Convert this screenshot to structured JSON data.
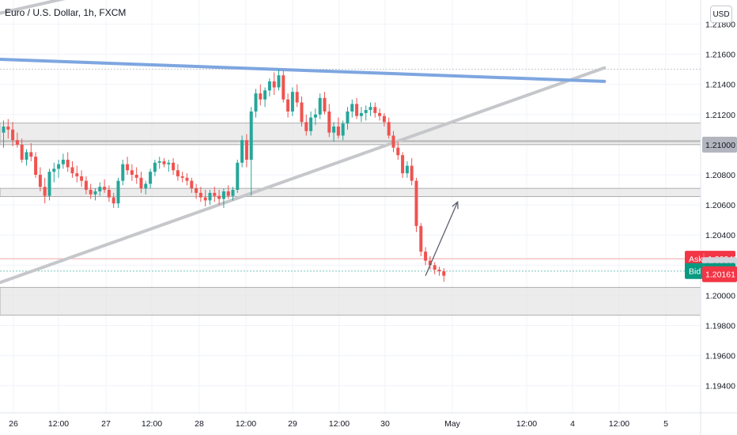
{
  "header": {
    "symbol": "Euro / U.S. Dollar, 1h, FXCM",
    "currency": "USD"
  },
  "chart_data": {
    "type": "candlestick",
    "ylim": [
      1.1922,
      1.2196
    ],
    "y_ticks": [
      "1.21800",
      "1.21600",
      "1.21400",
      "1.21200",
      "1.21000",
      "1.20800",
      "1.20600",
      "1.20400",
      "1.20200",
      "1.20000",
      "1.19800",
      "1.19600",
      "1.19400"
    ],
    "x_tick_labels": [
      "26",
      "12:00",
      "27",
      "12:00",
      "28",
      "12:00",
      "29",
      "12:00",
      "30",
      "May",
      "12:00",
      "4",
      "12:00",
      "5"
    ],
    "price_tags": [
      {
        "label": "",
        "value": "1.21000",
        "price": 1.21,
        "color": "#b2b5be",
        "text_color": "#131722"
      },
      {
        "label": "Ask",
        "value": "1.20243",
        "price": 1.20243,
        "color": "#f23645",
        "text_color": "#ffffff"
      },
      {
        "label": "",
        "value": "1.20200",
        "price": 1.202,
        "color": "#d1d4dc",
        "text_color": "#131722"
      },
      {
        "label": "Bid",
        "value": "1.20161",
        "price": 1.20161,
        "color": "#089981",
        "text_color": "#ffffff"
      },
      {
        "label": "",
        "value": "1.20161",
        "price": 1.2014,
        "color": "#f23645",
        "text_color": "#ffffff"
      }
    ],
    "zones": [
      {
        "from": 1.21143,
        "to": 1.21026
      },
      {
        "from": 1.2102,
        "to": 1.21
      },
      {
        "from": 1.2071,
        "to": 1.20655
      },
      {
        "from": 1.20053,
        "to": 1.19869
      }
    ],
    "colors": {
      "up": "#26a69a",
      "down": "#ef5350",
      "trend_blue": "#7ea6e0",
      "trend_grey": "#c6c7cb"
    },
    "candles": [
      [
        1.2108,
        1.2116,
        1.2098,
        1.2112
      ],
      [
        1.2112,
        1.2117,
        1.2104,
        1.211
      ],
      [
        1.211,
        1.2115,
        1.2099,
        1.2103
      ],
      [
        1.2103,
        1.2108,
        1.2098,
        1.21
      ],
      [
        1.21,
        1.2104,
        1.2088,
        1.209
      ],
      [
        1.209,
        1.2097,
        1.2086,
        1.2095
      ],
      [
        1.2095,
        1.2101,
        1.2089,
        1.2092
      ],
      [
        1.2092,
        1.2095,
        1.2078,
        1.208
      ],
      [
        1.208,
        1.2085,
        1.2069,
        1.2072
      ],
      [
        1.2072,
        1.2078,
        1.2061,
        1.2066
      ],
      [
        1.2066,
        1.2084,
        1.2063,
        1.2082
      ],
      [
        1.2082,
        1.2088,
        1.2075,
        1.2084
      ],
      [
        1.2084,
        1.209,
        1.2078,
        1.2087
      ],
      [
        1.2087,
        1.2094,
        1.2084,
        1.209
      ],
      [
        1.209,
        1.2095,
        1.2082,
        1.2085
      ],
      [
        1.2085,
        1.2089,
        1.2078,
        1.2081
      ],
      [
        1.2081,
        1.2086,
        1.2075,
        1.2079
      ],
      [
        1.2079,
        1.2083,
        1.2072,
        1.2076
      ],
      [
        1.2076,
        1.2079,
        1.2067,
        1.207
      ],
      [
        1.207,
        1.2074,
        1.2064,
        1.2067
      ],
      [
        1.2067,
        1.2071,
        1.2063,
        1.2069
      ],
      [
        1.2069,
        1.2075,
        1.2066,
        1.2072
      ],
      [
        1.2072,
        1.2077,
        1.2068,
        1.207
      ],
      [
        1.207,
        1.2073,
        1.2062,
        1.2065
      ],
      [
        1.2065,
        1.2068,
        1.2058,
        1.2061
      ],
      [
        1.2061,
        1.2078,
        1.2058,
        1.2076
      ],
      [
        1.2076,
        1.209,
        1.2073,
        1.2087
      ],
      [
        1.2087,
        1.2092,
        1.208,
        1.2083
      ],
      [
        1.2083,
        1.2087,
        1.2076,
        1.208
      ],
      [
        1.208,
        1.2085,
        1.2074,
        1.2078
      ],
      [
        1.2078,
        1.2082,
        1.2068,
        1.2071
      ],
      [
        1.2071,
        1.2076,
        1.2067,
        1.2074
      ],
      [
        1.2074,
        1.2084,
        1.2071,
        1.2082
      ],
      [
        1.2082,
        1.209,
        1.2079,
        1.2088
      ],
      [
        1.2088,
        1.2092,
        1.2084,
        1.2089
      ],
      [
        1.2089,
        1.2091,
        1.2085,
        1.2087
      ],
      [
        1.2087,
        1.209,
        1.2082,
        1.2088
      ],
      [
        1.2088,
        1.2091,
        1.208,
        1.2083
      ],
      [
        1.2083,
        1.2087,
        1.2076,
        1.2079
      ],
      [
        1.2079,
        1.2082,
        1.2075,
        1.2078
      ],
      [
        1.2078,
        1.2081,
        1.2073,
        1.2076
      ],
      [
        1.2076,
        1.2078,
        1.2068,
        1.2071
      ],
      [
        1.2071,
        1.2074,
        1.2064,
        1.2068
      ],
      [
        1.2068,
        1.2072,
        1.2062,
        1.2065
      ],
      [
        1.2065,
        1.207,
        1.2059,
        1.2063
      ],
      [
        1.2063,
        1.207,
        1.206,
        1.2068
      ],
      [
        1.2068,
        1.2072,
        1.2062,
        1.2066
      ],
      [
        1.2066,
        1.207,
        1.206,
        1.2064
      ],
      [
        1.2064,
        1.2071,
        1.2058,
        1.2069
      ],
      [
        1.2069,
        1.2073,
        1.2064,
        1.2066
      ],
      [
        1.2066,
        1.2072,
        1.2063,
        1.207
      ],
      [
        1.207,
        1.209,
        1.2068,
        1.2088
      ],
      [
        1.2088,
        1.2106,
        1.2085,
        1.2103
      ],
      [
        1.2103,
        1.2107,
        1.2085,
        1.209
      ],
      [
        1.209,
        1.2125,
        1.2066,
        1.2122
      ],
      [
        1.2122,
        1.2137,
        1.2118,
        1.2134
      ],
      [
        1.2134,
        1.214,
        1.2126,
        1.213
      ],
      [
        1.213,
        1.2138,
        1.2125,
        1.2136
      ],
      [
        1.2136,
        1.2144,
        1.2132,
        1.2142
      ],
      [
        1.2142,
        1.2148,
        1.2133,
        1.2138
      ],
      [
        1.2138,
        1.215,
        1.2136,
        1.2146
      ],
      [
        1.2146,
        1.2149,
        1.2128,
        1.213
      ],
      [
        1.213,
        1.2134,
        1.2118,
        1.2122
      ],
      [
        1.2122,
        1.2138,
        1.2119,
        1.2135
      ],
      [
        1.2135,
        1.214,
        1.2125,
        1.2128
      ],
      [
        1.2128,
        1.2132,
        1.2112,
        1.2115
      ],
      [
        1.2115,
        1.212,
        1.2106,
        1.2109
      ],
      [
        1.2109,
        1.2122,
        1.2106,
        1.2118
      ],
      [
        1.2118,
        1.2124,
        1.2113,
        1.212
      ],
      [
        1.212,
        1.2134,
        1.2117,
        1.2131
      ],
      [
        1.2131,
        1.2135,
        1.212,
        1.2122
      ],
      [
        1.2122,
        1.2127,
        1.2105,
        1.2108
      ],
      [
        1.2108,
        1.2115,
        1.2102,
        1.2112
      ],
      [
        1.2112,
        1.2118,
        1.2104,
        1.2106
      ],
      [
        1.2106,
        1.2116,
        1.2103,
        1.2114
      ],
      [
        1.2114,
        1.2125,
        1.211,
        1.2122
      ],
      [
        1.2122,
        1.213,
        1.2118,
        1.2127
      ],
      [
        1.2127,
        1.2131,
        1.2117,
        1.2119
      ],
      [
        1.2119,
        1.2125,
        1.2115,
        1.2121
      ],
      [
        1.2121,
        1.2126,
        1.2116,
        1.2123
      ],
      [
        1.2123,
        1.2128,
        1.2119,
        1.2125
      ],
      [
        1.2125,
        1.2128,
        1.2118,
        1.2121
      ],
      [
        1.2121,
        1.2124,
        1.2116,
        1.2119
      ],
      [
        1.2119,
        1.2121,
        1.2112,
        1.2115
      ],
      [
        1.2115,
        1.2118,
        1.2104,
        1.2106
      ],
      [
        1.2106,
        1.2109,
        1.2095,
        1.2098
      ],
      [
        1.2098,
        1.2102,
        1.209,
        1.2093
      ],
      [
        1.2093,
        1.2095,
        1.2078,
        1.2081
      ],
      [
        1.2081,
        1.2089,
        1.2078,
        1.2086
      ],
      [
        1.2086,
        1.2091,
        1.2073,
        1.2076
      ],
      [
        1.2076,
        1.2078,
        1.2042,
        1.2046
      ],
      [
        1.2046,
        1.2048,
        1.2026,
        1.2029
      ],
      [
        1.2029,
        1.2032,
        1.202,
        1.2023
      ],
      [
        1.2023,
        1.2026,
        1.2017,
        1.202
      ],
      [
        1.202,
        1.2022,
        1.2014,
        1.2017
      ],
      [
        1.2017,
        1.2019,
        1.2013,
        1.2016
      ],
      [
        1.2016,
        1.2018,
        1.2009,
        1.2013
      ]
    ],
    "drawings": {
      "blue_trendline": {
        "from": [
          -4,
          1.2157
        ],
        "to": [
          131,
          1.2142
        ]
      },
      "grey_trendline_lower": {
        "from": [
          -4,
          1.2005
        ],
        "to": [
          131,
          1.2151
        ]
      },
      "grey_trendline_upper": {
        "from": [
          -4,
          1.2185
        ],
        "to": [
          38,
          1.2214
        ]
      },
      "arrow": {
        "from": [
          92,
          1.2013
        ],
        "to": [
          99,
          1.2062
        ]
      }
    }
  }
}
